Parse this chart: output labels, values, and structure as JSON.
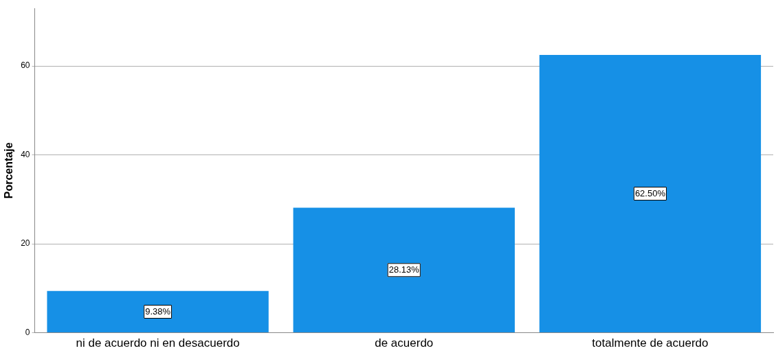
{
  "chart_data": {
    "type": "bar",
    "ylabel": "Porcentaje",
    "categories": [
      "ni de acuerdo ni en desacuerdo",
      "de acuerdo",
      "totalmente de acuerdo"
    ],
    "values": [
      9.38,
      28.13,
      62.5
    ],
    "color": "#1690e6",
    "value_labels": [
      "9.38%",
      "28.13%",
      "62.50%"
    ],
    "ylim": [
      0,
      73
    ],
    "yticks": [
      0,
      20,
      40,
      60
    ],
    "grid": "y",
    "legend": false
  }
}
